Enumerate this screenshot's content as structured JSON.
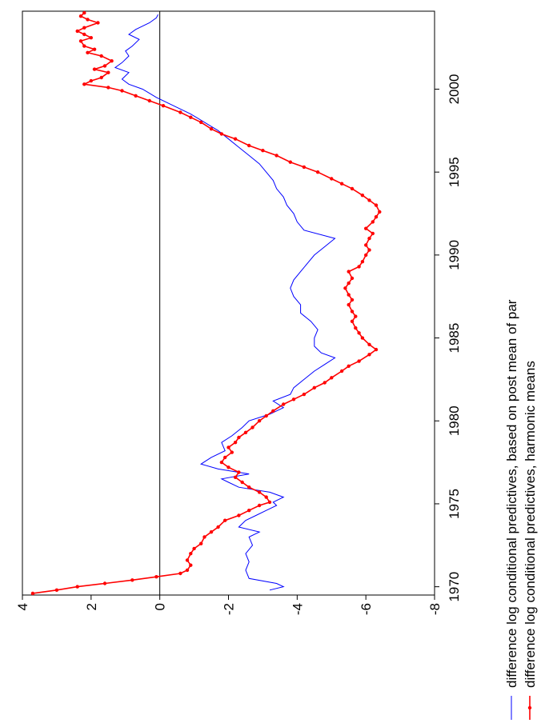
{
  "chart_data": {
    "type": "line",
    "orientation": "rotated-90",
    "x_range": [
      1969.5,
      2004.7
    ],
    "y_range": [
      -8,
      4
    ],
    "x_ticks": [
      1970,
      1975,
      1980,
      1985,
      1990,
      1995,
      2000
    ],
    "x_tick_labels": [
      "1970",
      "1975",
      "1980",
      "1985",
      "1990",
      "1995",
      "2000"
    ],
    "y_ticks": [
      4,
      2,
      0,
      -2,
      -4,
      -6,
      -8
    ],
    "y_tick_labels": [
      "4",
      "2",
      "0",
      "-2",
      "-4",
      "-6",
      "-8"
    ],
    "zero_line": true,
    "grid": false,
    "legend_position": "bottom",
    "series": [
      {
        "name": "difference log conditional predictives, based on post mean of par",
        "color": "#0000ff",
        "markers": false,
        "points": [
          [
            1969.8,
            -3.2
          ],
          [
            1970.0,
            -3.6
          ],
          [
            1970.2,
            -3.4
          ],
          [
            1970.5,
            -2.6
          ],
          [
            1971.0,
            -2.5
          ],
          [
            1971.5,
            -2.6
          ],
          [
            1972.0,
            -2.5
          ],
          [
            1972.5,
            -2.7
          ],
          [
            1973.0,
            -2.6
          ],
          [
            1973.3,
            -2.9
          ],
          [
            1973.6,
            -2.3
          ],
          [
            1974.0,
            -2.5
          ],
          [
            1974.3,
            -2.8
          ],
          [
            1974.6,
            -3.1
          ],
          [
            1974.9,
            -3.4
          ],
          [
            1975.1,
            -3.3
          ],
          [
            1975.4,
            -3.6
          ],
          [
            1975.7,
            -3.2
          ],
          [
            1976.0,
            -2.3
          ],
          [
            1976.3,
            -2.0
          ],
          [
            1976.5,
            -1.8
          ],
          [
            1976.8,
            -2.6
          ],
          [
            1977.1,
            -1.7
          ],
          [
            1977.4,
            -1.2
          ],
          [
            1977.8,
            -1.5
          ],
          [
            1978.2,
            -1.9
          ],
          [
            1978.7,
            -1.8
          ],
          [
            1979.1,
            -2.1
          ],
          [
            1979.6,
            -2.4
          ],
          [
            1980.0,
            -2.6
          ],
          [
            1980.4,
            -3.2
          ],
          [
            1980.8,
            -3.6
          ],
          [
            1981.2,
            -3.3
          ],
          [
            1981.6,
            -3.8
          ],
          [
            1982.0,
            -3.9
          ],
          [
            1982.5,
            -4.2
          ],
          [
            1983.0,
            -4.5
          ],
          [
            1983.4,
            -4.8
          ],
          [
            1983.8,
            -5.1
          ],
          [
            1984.1,
            -4.7
          ],
          [
            1984.5,
            -4.5
          ],
          [
            1985.0,
            -4.5
          ],
          [
            1985.5,
            -4.6
          ],
          [
            1986.0,
            -4.4
          ],
          [
            1986.5,
            -4.1
          ],
          [
            1987.0,
            -4.1
          ],
          [
            1987.5,
            -3.9
          ],
          [
            1988.0,
            -3.8
          ],
          [
            1988.5,
            -3.9
          ],
          [
            1989.0,
            -4.1
          ],
          [
            1989.5,
            -4.3
          ],
          [
            1990.0,
            -4.5
          ],
          [
            1990.5,
            -4.8
          ],
          [
            1991.0,
            -5.1
          ],
          [
            1991.5,
            -4.2
          ],
          [
            1992.0,
            -4.0
          ],
          [
            1992.5,
            -3.9
          ],
          [
            1993.0,
            -3.7
          ],
          [
            1993.5,
            -3.6
          ],
          [
            1994.0,
            -3.4
          ],
          [
            1994.5,
            -3.3
          ],
          [
            1995.0,
            -3.1
          ],
          [
            1995.5,
            -2.9
          ],
          [
            1996.0,
            -2.6
          ],
          [
            1996.5,
            -2.3
          ],
          [
            1997.0,
            -2.0
          ],
          [
            1997.5,
            -1.7
          ],
          [
            1998.0,
            -1.3
          ],
          [
            1998.5,
            -0.9
          ],
          [
            1999.0,
            -0.4
          ],
          [
            1999.5,
            0.1
          ],
          [
            2000.0,
            0.5
          ],
          [
            2000.3,
            0.9
          ],
          [
            2000.6,
            1.1
          ],
          [
            2001.0,
            0.9
          ],
          [
            2001.3,
            1.3
          ],
          [
            2001.6,
            1.1
          ],
          [
            2002.0,
            0.9
          ],
          [
            2002.3,
            1.0
          ],
          [
            2002.6,
            0.8
          ],
          [
            2003.0,
            0.6
          ],
          [
            2003.3,
            0.9
          ],
          [
            2003.6,
            0.7
          ],
          [
            2004.0,
            0.3
          ],
          [
            2004.3,
            0.1
          ],
          [
            2004.5,
            0.05
          ]
        ]
      },
      {
        "name": "difference log conditional predictives, harmonic means",
        "color": "#ff0000",
        "markers": true,
        "points": [
          [
            1969.6,
            3.7
          ],
          [
            1969.8,
            3.0
          ],
          [
            1970.0,
            2.4
          ],
          [
            1970.2,
            1.6
          ],
          [
            1970.4,
            0.8
          ],
          [
            1970.6,
            0.1
          ],
          [
            1970.8,
            -0.6
          ],
          [
            1971.0,
            -0.8
          ],
          [
            1971.3,
            -0.9
          ],
          [
            1971.6,
            -0.8
          ],
          [
            1972.0,
            -0.9
          ],
          [
            1972.3,
            -1.0
          ],
          [
            1972.6,
            -1.2
          ],
          [
            1973.0,
            -1.3
          ],
          [
            1973.3,
            -1.5
          ],
          [
            1973.6,
            -1.7
          ],
          [
            1974.0,
            -1.9
          ],
          [
            1974.3,
            -2.3
          ],
          [
            1974.6,
            -2.6
          ],
          [
            1974.9,
            -2.9
          ],
          [
            1975.1,
            -3.2
          ],
          [
            1975.4,
            -3.1
          ],
          [
            1975.7,
            -2.9
          ],
          [
            1976.0,
            -2.6
          ],
          [
            1976.3,
            -2.4
          ],
          [
            1976.6,
            -2.2
          ],
          [
            1976.9,
            -2.3
          ],
          [
            1977.2,
            -2.0
          ],
          [
            1977.5,
            -1.8
          ],
          [
            1977.8,
            -1.9
          ],
          [
            1978.1,
            -2.1
          ],
          [
            1978.4,
            -2.0
          ],
          [
            1978.7,
            -2.2
          ],
          [
            1979.0,
            -2.3
          ],
          [
            1979.3,
            -2.5
          ],
          [
            1979.6,
            -2.7
          ],
          [
            1980.0,
            -2.9
          ],
          [
            1980.3,
            -3.1
          ],
          [
            1980.6,
            -3.3
          ],
          [
            1981.0,
            -3.6
          ],
          [
            1981.3,
            -3.9
          ],
          [
            1981.6,
            -4.2
          ],
          [
            1982.0,
            -4.5
          ],
          [
            1982.3,
            -4.8
          ],
          [
            1982.6,
            -5.0
          ],
          [
            1983.0,
            -5.3
          ],
          [
            1983.3,
            -5.5
          ],
          [
            1983.6,
            -5.8
          ],
          [
            1984.0,
            -6.1
          ],
          [
            1984.3,
            -6.3
          ],
          [
            1984.6,
            -6.1
          ],
          [
            1985.0,
            -5.9
          ],
          [
            1985.3,
            -5.8
          ],
          [
            1985.6,
            -5.7
          ],
          [
            1986.0,
            -5.6
          ],
          [
            1986.3,
            -5.7
          ],
          [
            1986.6,
            -5.6
          ],
          [
            1987.0,
            -5.5
          ],
          [
            1987.3,
            -5.6
          ],
          [
            1987.6,
            -5.5
          ],
          [
            1988.0,
            -5.4
          ],
          [
            1988.3,
            -5.5
          ],
          [
            1988.6,
            -5.6
          ],
          [
            1989.0,
            -5.5
          ],
          [
            1989.3,
            -5.8
          ],
          [
            1989.6,
            -5.9
          ],
          [
            1990.0,
            -6.0
          ],
          [
            1990.3,
            -6.1
          ],
          [
            1990.6,
            -6.0
          ],
          [
            1991.0,
            -6.1
          ],
          [
            1991.3,
            -6.2
          ],
          [
            1991.6,
            -6.0
          ],
          [
            1992.0,
            -6.2
          ],
          [
            1992.3,
            -6.3
          ],
          [
            1992.6,
            -6.4
          ],
          [
            1993.0,
            -6.3
          ],
          [
            1993.3,
            -6.1
          ],
          [
            1993.6,
            -5.9
          ],
          [
            1994.0,
            -5.6
          ],
          [
            1994.3,
            -5.3
          ],
          [
            1994.6,
            -5.0
          ],
          [
            1995.0,
            -4.6
          ],
          [
            1995.3,
            -4.2
          ],
          [
            1995.6,
            -3.8
          ],
          [
            1996.0,
            -3.4
          ],
          [
            1996.3,
            -3.0
          ],
          [
            1996.6,
            -2.6
          ],
          [
            1997.0,
            -2.2
          ],
          [
            1997.3,
            -1.8
          ],
          [
            1997.6,
            -1.5
          ],
          [
            1998.0,
            -1.2
          ],
          [
            1998.3,
            -0.9
          ],
          [
            1998.6,
            -0.6
          ],
          [
            1999.0,
            -0.1
          ],
          [
            1999.3,
            0.3
          ],
          [
            1999.6,
            0.7
          ],
          [
            1999.9,
            1.1
          ],
          [
            2000.1,
            1.5
          ],
          [
            2000.3,
            2.2
          ],
          [
            2000.5,
            2.0
          ],
          [
            2000.7,
            1.7
          ],
          [
            2001.0,
            1.5
          ],
          [
            2001.2,
            1.9
          ],
          [
            2001.4,
            1.6
          ],
          [
            2001.7,
            1.4
          ],
          [
            2002.0,
            1.7
          ],
          [
            2002.2,
            2.1
          ],
          [
            2002.4,
            1.9
          ],
          [
            2002.6,
            2.2
          ],
          [
            2002.9,
            2.3
          ],
          [
            2003.1,
            2.0
          ],
          [
            2003.3,
            2.2
          ],
          [
            2003.5,
            2.4
          ],
          [
            2003.7,
            2.2
          ],
          [
            2004.0,
            1.8
          ],
          [
            2004.2,
            2.1
          ],
          [
            2004.4,
            2.3
          ],
          [
            2004.6,
            2.2
          ]
        ]
      }
    ]
  }
}
